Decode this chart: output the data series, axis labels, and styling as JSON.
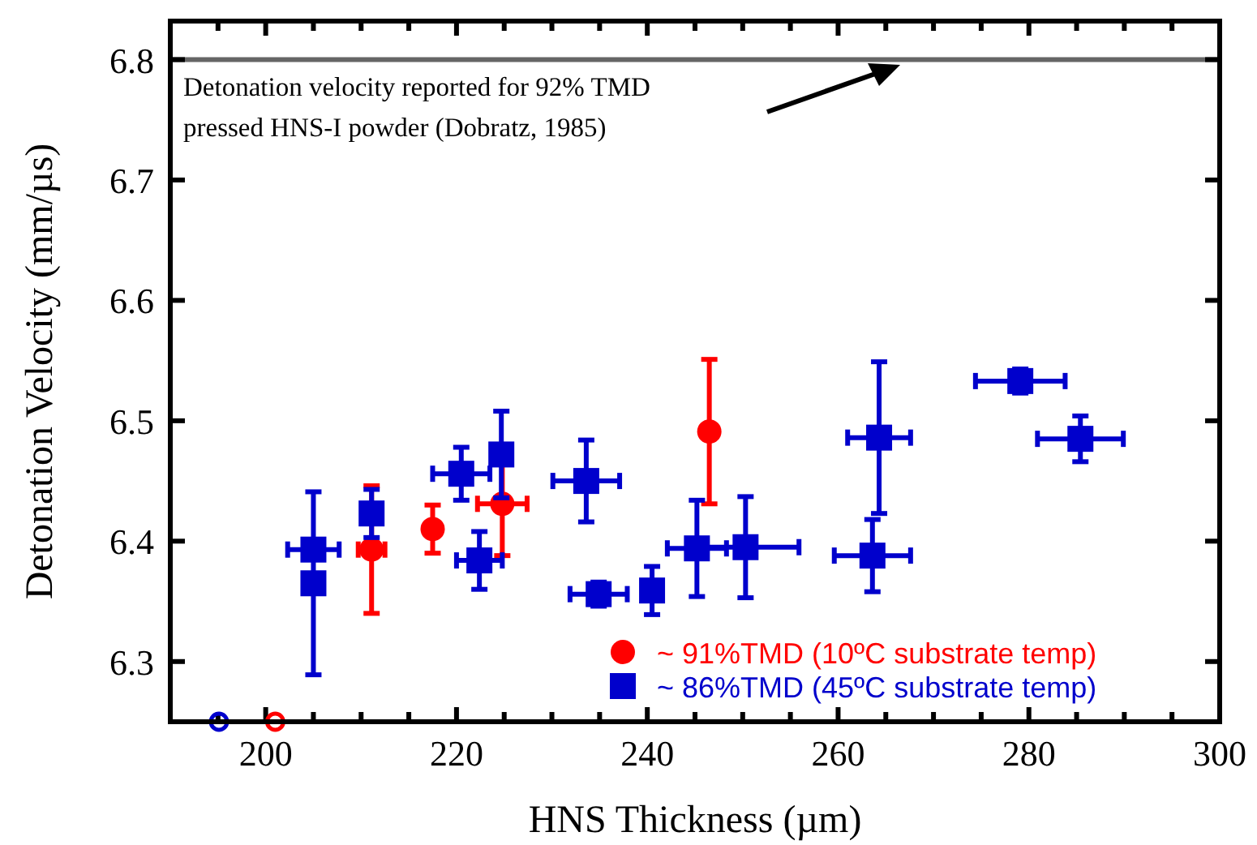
{
  "chart_data": {
    "type": "scatter",
    "xlabel": "HNS Thickness (µm)",
    "ylabel": "Detonation Velocity (mm/µs)",
    "xlim": [
      190,
      300
    ],
    "ylim": [
      6.25,
      6.832
    ],
    "xticks": [
      {
        "value": 195,
        "label": null
      },
      200,
      {
        "value": 205,
        "label": null
      },
      {
        "value": 210,
        "label": null
      },
      {
        "value": 215,
        "label": null
      },
      220,
      {
        "value": 225,
        "label": null
      },
      {
        "value": 230,
        "label": null
      },
      {
        "value": 235,
        "label": null
      },
      240,
      {
        "value": 245,
        "label": null
      },
      {
        "value": 250,
        "label": null
      },
      {
        "value": 255,
        "label": null
      },
      260,
      {
        "value": 265,
        "label": null
      },
      {
        "value": 270,
        "label": null
      },
      {
        "value": 275,
        "label": null
      },
      280,
      {
        "value": 285,
        "label": null
      },
      {
        "value": 290,
        "label": null
      },
      {
        "value": 295,
        "label": null
      },
      300
    ],
    "yticks": [
      6.3,
      6.4,
      6.5,
      6.6,
      6.7,
      6.8
    ],
    "grid": false,
    "legend": "bottom right",
    "series": [
      {
        "name": "~ 91%TMD (10ºC substrate temp)",
        "color": "#ff0000",
        "marker": "circle",
        "x": [
          211.1,
          217.5,
          224.8,
          246.5
        ],
        "values": [
          6.393,
          6.41,
          6.431,
          6.491
        ],
        "errors": [
          0.053,
          0.02,
          0.043,
          0.06
        ],
        "xerrors": [
          1.4,
          null,
          2.6,
          null
        ]
      },
      {
        "name": "~ 86%TMD (45ºC substrate temp)",
        "color": "#0000cc",
        "marker": "square",
        "x": [
          205.0,
          205.0,
          211.1,
          220.5,
          222.4,
          224.7,
          233.6,
          234.9,
          240.5,
          245.2,
          250.3,
          264.3,
          263.6,
          279.1,
          285.4
        ],
        "values": [
          6.393,
          6.365,
          6.423,
          6.456,
          6.384,
          6.472,
          6.45,
          6.356,
          6.359,
          6.394,
          6.395,
          6.486,
          6.388,
          6.533,
          6.485
        ],
        "errors": [
          null,
          0.076,
          0.02,
          0.022,
          0.024,
          0.036,
          0.034,
          0.01,
          0.02,
          0.04,
          0.042,
          0.063,
          0.03,
          0.01,
          0.019
        ],
        "xerrors": [
          2.7,
          null,
          null,
          3.0,
          2.4,
          null,
          3.5,
          3.0,
          null,
          3.1,
          5.6,
          3.3,
          4.0,
          4.7,
          4.5
        ]
      },
      {
        "color": "#0000cc",
        "marker": "circle",
        "x": [
          195.1
        ],
        "values": [
          6.25
        ]
      },
      {
        "color": "#ff0000",
        "marker": "circle",
        "x": [
          201.0
        ],
        "values": [
          6.25
        ]
      }
    ],
    "ref_lines": [
      {
        "axis": "y",
        "value": 6.8,
        "color": "#666666"
      }
    ],
    "annotations": [
      "Detonation velocity reported for 92% TMD\npressed HNS-I powder (Dobratz, 1985)"
    ]
  }
}
